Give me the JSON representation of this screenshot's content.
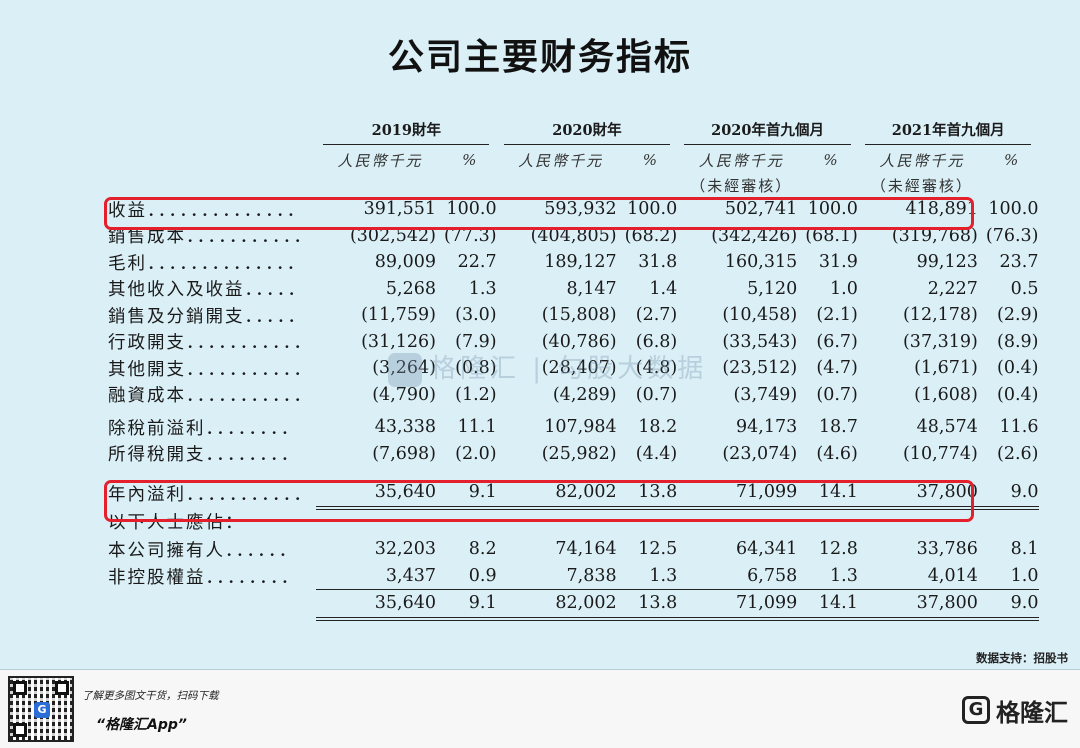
{
  "title": "公司主要财务指标",
  "headers": {
    "years": [
      "2019財年",
      "2020財年",
      "2020年首九個月",
      "2021年首九個月"
    ],
    "unit_rmb": "人民幣千元",
    "unit_pct": "%",
    "unaudited": "（未經審核）"
  },
  "rows": [
    {
      "label": "收益．．．．．．．．．．．．．．",
      "v": [
        "391,551",
        "100.0",
        "593,932",
        "100.0",
        "502,741",
        "100.0",
        "418,891",
        "100.0"
      ]
    },
    {
      "label": "銷售成本．．．．．．．．．．．",
      "v": [
        "(302,542)",
        "(77.3)",
        "(404,805)",
        "(68.2)",
        "(342,426)",
        "(68.1)",
        "(319,768)",
        "(76.3)"
      ]
    },
    {
      "label": "毛利．．．．．．．．．．．．．．",
      "v": [
        "89,009",
        "22.7",
        "189,127",
        "31.8",
        "160,315",
        "31.9",
        "99,123",
        "23.7"
      ]
    },
    {
      "label": "其他收入及收益．．．．．",
      "v": [
        "5,268",
        "1.3",
        "8,147",
        "1.4",
        "5,120",
        "1.0",
        "2,227",
        "0.5"
      ]
    },
    {
      "label": "銷售及分銷開支．．．．．",
      "v": [
        "(11,759)",
        "(3.0)",
        "(15,808)",
        "(2.7)",
        "(10,458)",
        "(2.1)",
        "(12,178)",
        "(2.9)"
      ]
    },
    {
      "label": "行政開支．．．．．．．．．．．",
      "v": [
        "(31,126)",
        "(7.9)",
        "(40,786)",
        "(6.8)",
        "(33,543)",
        "(6.7)",
        "(37,319)",
        "(8.9)"
      ]
    },
    {
      "label": "其他開支．．．．．．．．．．．",
      "v": [
        "(3,264)",
        "(0.8)",
        "(28,407)",
        "(4.8)",
        "(23,512)",
        "(4.7)",
        "(1,671)",
        "(0.4)"
      ]
    },
    {
      "label": "融資成本．．．．．．．．．．．",
      "v": [
        "(4,790)",
        "(1.2)",
        "(4,289)",
        "(0.7)",
        "(3,749)",
        "(0.7)",
        "(1,608)",
        "(0.4)"
      ]
    },
    {
      "label": "除稅前溢利．．．．．．．．",
      "v": [
        "43,338",
        "11.1",
        "107,984",
        "18.2",
        "94,173",
        "18.7",
        "48,574",
        "11.6"
      ]
    },
    {
      "label": "所得稅開支．．．．．．．．",
      "v": [
        "(7,698)",
        "(2.0)",
        "(25,982)",
        "(4.4)",
        "(23,074)",
        "(4.6)",
        "(10,774)",
        "(2.6)"
      ]
    },
    {
      "label": "年內溢利．．．．．．．．．．．",
      "v": [
        "35,640",
        "9.1",
        "82,002",
        "13.8",
        "71,099",
        "14.1",
        "37,800",
        "9.0"
      ]
    },
    {
      "label": "以下人士應佔：",
      "v": [
        "",
        "",
        "",
        "",
        "",
        "",
        "",
        ""
      ]
    },
    {
      "label": "本公司擁有人．．．．．．",
      "v": [
        "32,203",
        "8.2",
        "74,164",
        "12.5",
        "64,341",
        "12.8",
        "33,786",
        "8.1"
      ]
    },
    {
      "label": "非控股權益．．．．．．．．",
      "v": [
        "3,437",
        "0.9",
        "7,838",
        "1.3",
        "6,758",
        "1.3",
        "4,014",
        "1.0"
      ]
    },
    {
      "label": "",
      "v": [
        "35,640",
        "9.1",
        "82,002",
        "13.8",
        "71,099",
        "14.1",
        "37,800",
        "9.0"
      ]
    }
  ],
  "watermark": "格隆汇 | 勾股大数据",
  "source": "数据支持：招股书",
  "footer": {
    "promo_line": "了解更多图文干货，扫码下载",
    "app_name": "“格隆汇App”",
    "brand": "格隆汇",
    "brand_icon": "G"
  },
  "highlight_color": "#e5202d"
}
